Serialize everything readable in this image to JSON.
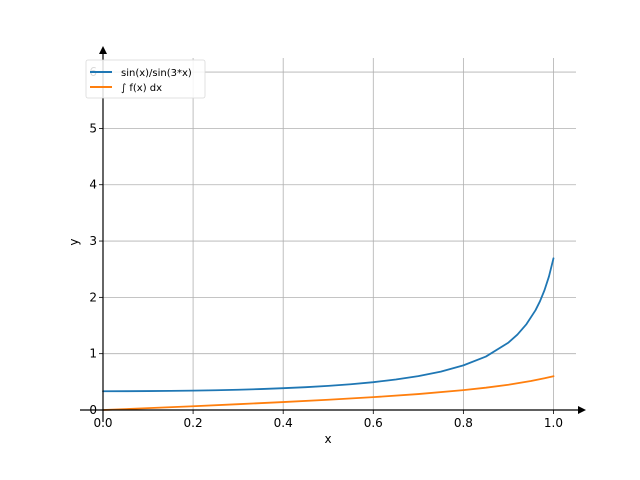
{
  "chart_data": {
    "type": "line",
    "title": "",
    "xlabel": "x",
    "ylabel": "y",
    "xlim": [
      0,
      1.05
    ],
    "ylim": [
      0,
      6.25
    ],
    "xticks": [
      0.0,
      0.2,
      0.4,
      0.6,
      0.8,
      1.0
    ],
    "xtick_labels": [
      "0.0",
      "0.2",
      "0.4",
      "0.6",
      "0.8",
      "1.0"
    ],
    "yticks": [
      0,
      1,
      2,
      3,
      4,
      5,
      6
    ],
    "ytick_labels": [
      "0",
      "1",
      "2",
      "3",
      "4",
      "5",
      "6"
    ],
    "grid": true,
    "legend_position": "top-left",
    "series": [
      {
        "name": "sin(x)/sin(3*x)",
        "color": "#1f77b4",
        "x": [
          0.0,
          0.05,
          0.1,
          0.15,
          0.2,
          0.25,
          0.3,
          0.35,
          0.4,
          0.45,
          0.5,
          0.55,
          0.6,
          0.65,
          0.7,
          0.75,
          0.8,
          0.85,
          0.9,
          0.92,
          0.94,
          0.96,
          0.97,
          0.98,
          0.99,
          1.0
        ],
        "y": [
          0.333,
          0.334,
          0.336,
          0.339,
          0.344,
          0.351,
          0.36,
          0.372,
          0.387,
          0.405,
          0.428,
          0.457,
          0.494,
          0.541,
          0.602,
          0.682,
          0.792,
          0.949,
          1.197,
          1.34,
          1.524,
          1.77,
          1.93,
          2.126,
          2.372,
          2.693
        ]
      },
      {
        "name": "∫ f(x) dx",
        "color": "#ff7f0e",
        "x": [
          0.0,
          0.1,
          0.2,
          0.3,
          0.4,
          0.5,
          0.6,
          0.7,
          0.8,
          0.85,
          0.9,
          0.95,
          0.98,
          1.0
        ],
        "y": [
          0.0,
          0.033,
          0.067,
          0.103,
          0.141,
          0.182,
          0.228,
          0.283,
          0.353,
          0.396,
          0.449,
          0.515,
          0.563,
          0.6
        ]
      }
    ]
  }
}
